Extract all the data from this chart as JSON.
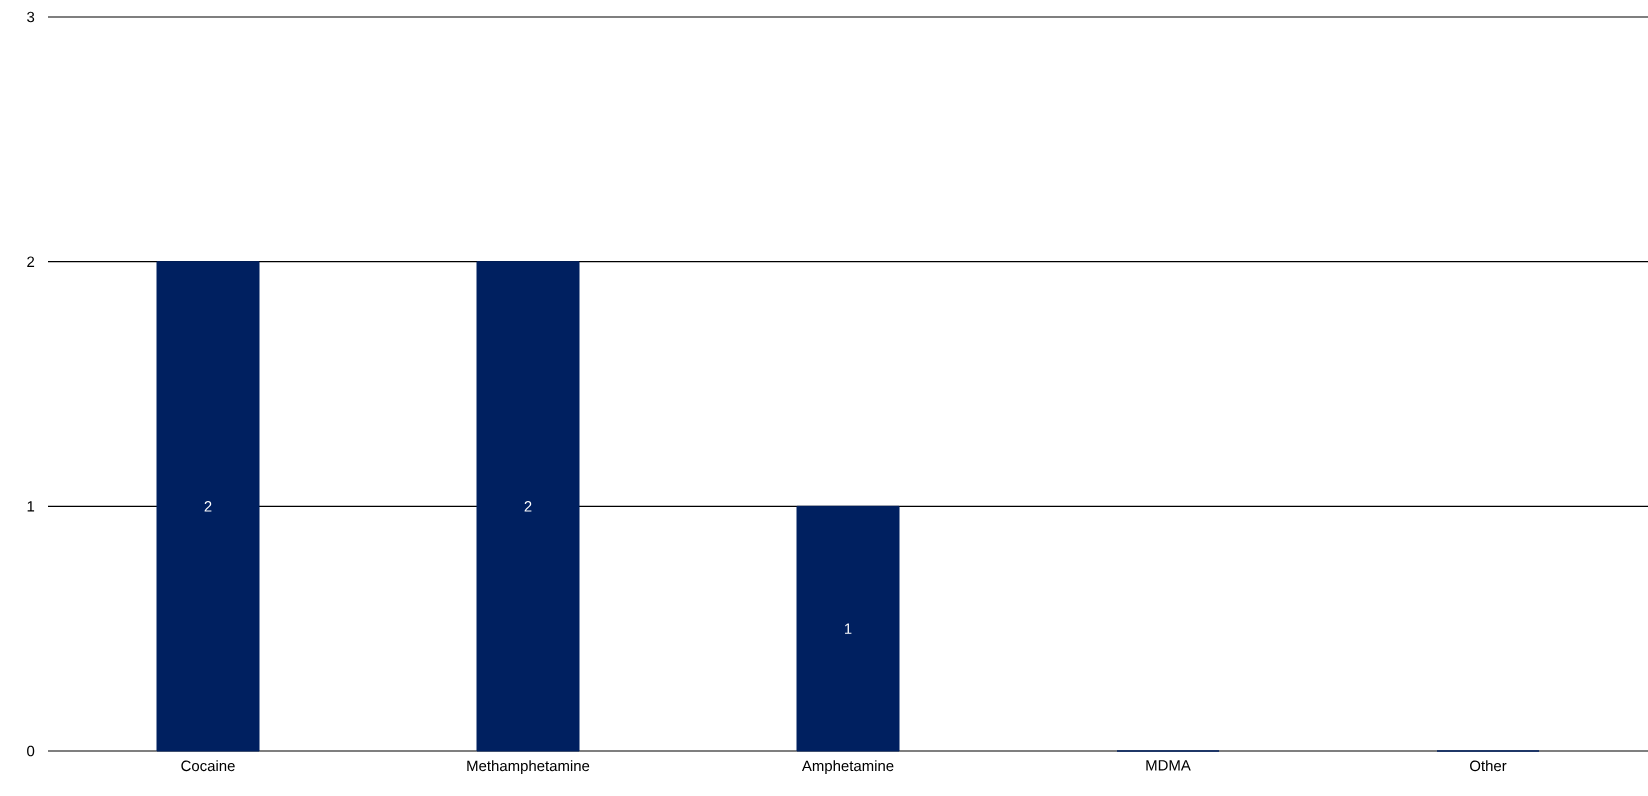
{
  "chart_data": {
    "type": "bar",
    "categories": [
      "Cocaine",
      "Methamphetamine",
      "Amphetamine",
      "MDMA",
      "Other"
    ],
    "values": [
      2,
      2,
      1,
      0,
      0
    ],
    "value_labels": [
      "2",
      "2",
      "1",
      null,
      null
    ],
    "color": "#002060",
    "ylim": [
      0,
      3
    ],
    "yticks": [
      0,
      1,
      2,
      3
    ],
    "grid": "y"
  }
}
